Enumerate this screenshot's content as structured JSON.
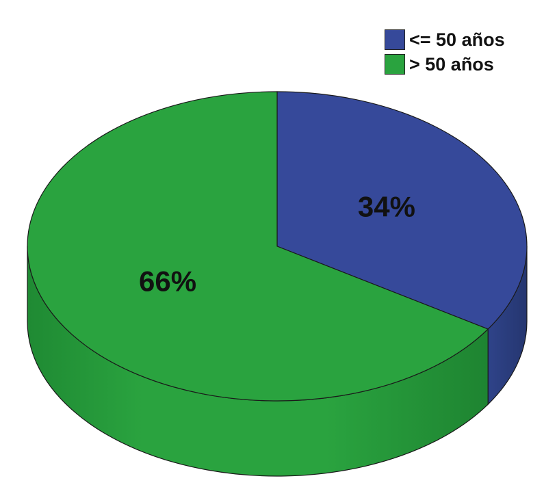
{
  "chart_data": {
    "type": "pie",
    "categories": [
      "<= 50 años",
      "> 50 años"
    ],
    "values": [
      34,
      66
    ],
    "data_labels": [
      "34%",
      "66%"
    ],
    "colors": [
      "#36499a",
      "#2aa33f"
    ],
    "legend": {
      "placement": "top-right",
      "entries": [
        "<= 50 años",
        "> 50 años"
      ]
    },
    "style": "3d"
  }
}
